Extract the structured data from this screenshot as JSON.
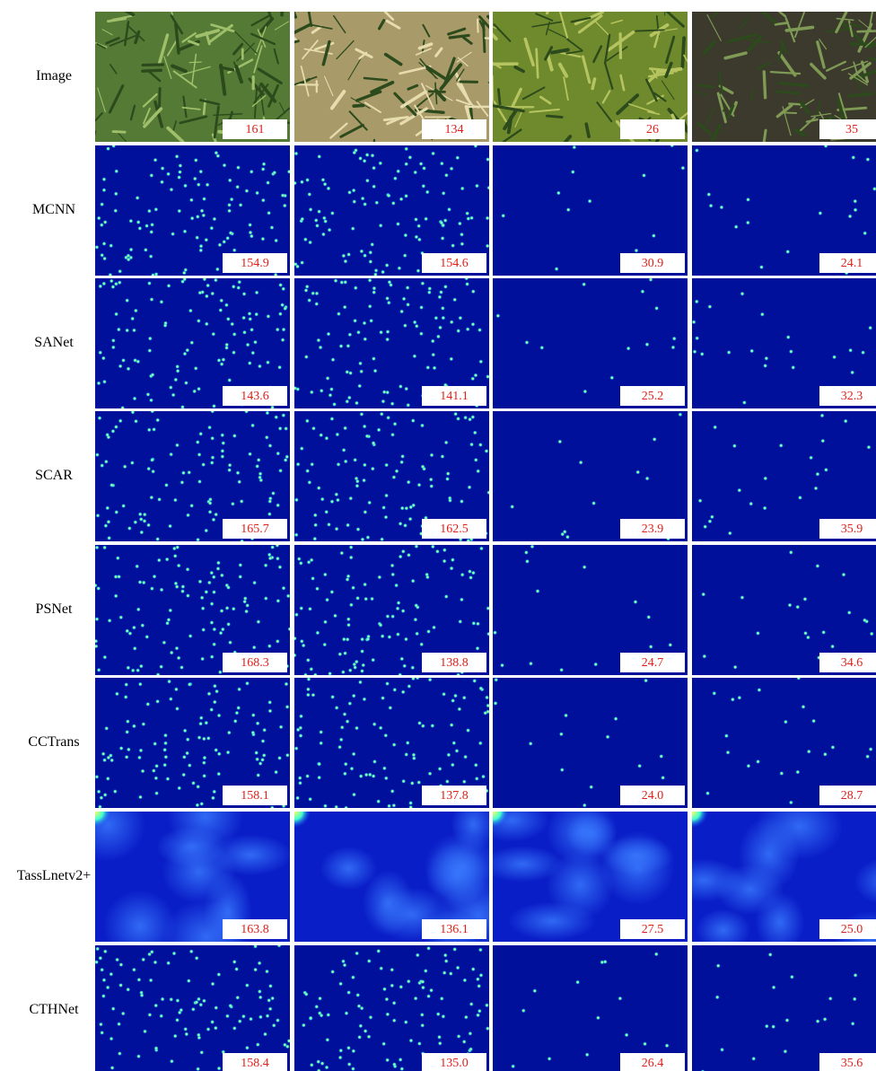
{
  "rows": [
    {
      "label": "Image",
      "counts": [
        "161",
        "134",
        "26",
        "35"
      ]
    },
    {
      "label": "MCNN",
      "counts": [
        "154.9",
        "154.6",
        "30.9",
        "24.1"
      ]
    },
    {
      "label": "SANet",
      "counts": [
        "143.6",
        "141.1",
        "25.2",
        "32.3"
      ]
    },
    {
      "label": "SCAR",
      "counts": [
        "165.7",
        "162.5",
        "23.9",
        "35.9"
      ]
    },
    {
      "label": "PSNet",
      "counts": [
        "168.3",
        "138.8",
        "24.7",
        "34.6"
      ]
    },
    {
      "label": "CCTrans",
      "counts": [
        "158.1",
        "137.8",
        "24.0",
        "28.7"
      ]
    },
    {
      "label": "TassLnetv2+",
      "counts": [
        "163.8",
        "136.1",
        "27.5",
        "25.0"
      ]
    },
    {
      "label": "CTHNet",
      "counts": [
        "158.4",
        "135.0",
        "26.4",
        "35.6"
      ]
    }
  ]
}
